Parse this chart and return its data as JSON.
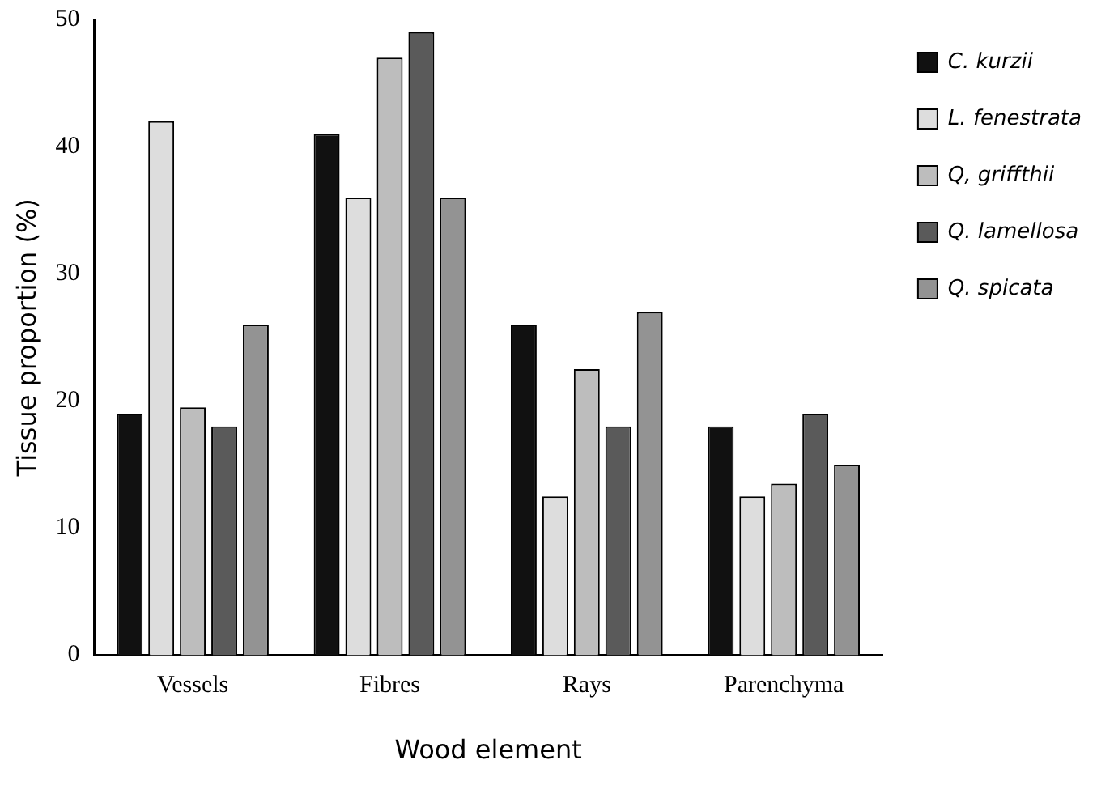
{
  "chart_data": {
    "type": "bar",
    "xlabel": "Wood element",
    "ylabel": "Tissue proportion (%)",
    "categories": [
      "Vessels",
      "Fibres",
      "Rays",
      "Parenchyma"
    ],
    "series": [
      {
        "name": "C. kurzii",
        "color": "#111111",
        "values": [
          19,
          41,
          26,
          18
        ]
      },
      {
        "name": "L. fenestrata",
        "color": "#dddddd",
        "values": [
          42,
          36,
          12.5,
          12.5
        ]
      },
      {
        "name": "Q, griffthii",
        "color": "#bdbdbd",
        "values": [
          19.5,
          47,
          22.5,
          13.5
        ]
      },
      {
        "name": "Q. lamellosa",
        "color": "#5a5a5a",
        "values": [
          18,
          49,
          18,
          19
        ]
      },
      {
        "name": "Q. spicata",
        "color": "#939393",
        "values": [
          26,
          36,
          27,
          15
        ]
      }
    ],
    "ylim": [
      0,
      50
    ],
    "yticks": [
      0,
      10,
      20,
      30,
      40,
      50
    ],
    "grid": false,
    "legend": "top right"
  }
}
